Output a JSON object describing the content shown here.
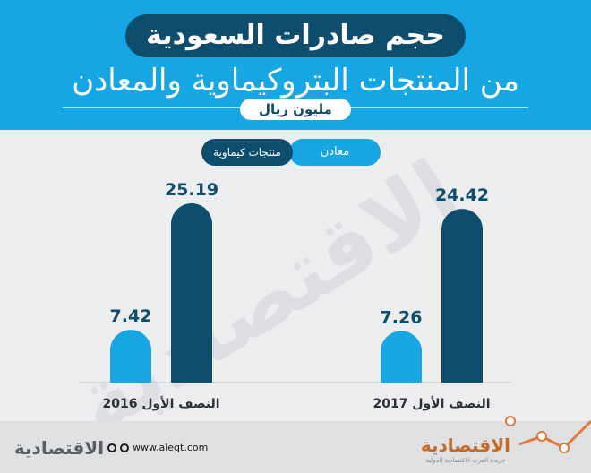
{
  "header": {
    "title": "حجم صادرات السعودية",
    "subtitle": "من المنتجات البتروكيماوية والمعادن",
    "unit": "مليون ريال"
  },
  "legend": {
    "minerals": "معادن",
    "chemicals": "منتجات كيماوية"
  },
  "watermark": "الاقتصادية",
  "footer": {
    "logo_left": "الاقتصادية",
    "website": "www.aleqt.com",
    "logo_right": "الاقتصادية",
    "logo_right_tagline": "جريدة العرب الاقتصادية الدولية"
  },
  "colors": {
    "minerals": "#16a6e3",
    "chemicals": "#0e4d6d",
    "header_bg": "#16a6e3",
    "value_label": "#0e4d6d",
    "footer_line": "#e07a3a"
  },
  "chart_data": {
    "type": "bar",
    "categories": [
      "النصف الأول 2016",
      "النصف الأول 2017"
    ],
    "series": [
      {
        "name": "معادن",
        "values": [
          7.42,
          7.26
        ]
      },
      {
        "name": "منتجات كيماوية",
        "values": [
          25.19,
          24.42
        ]
      }
    ],
    "ylim": [
      0,
      25.19
    ],
    "grid": false,
    "legend_position": "top"
  }
}
